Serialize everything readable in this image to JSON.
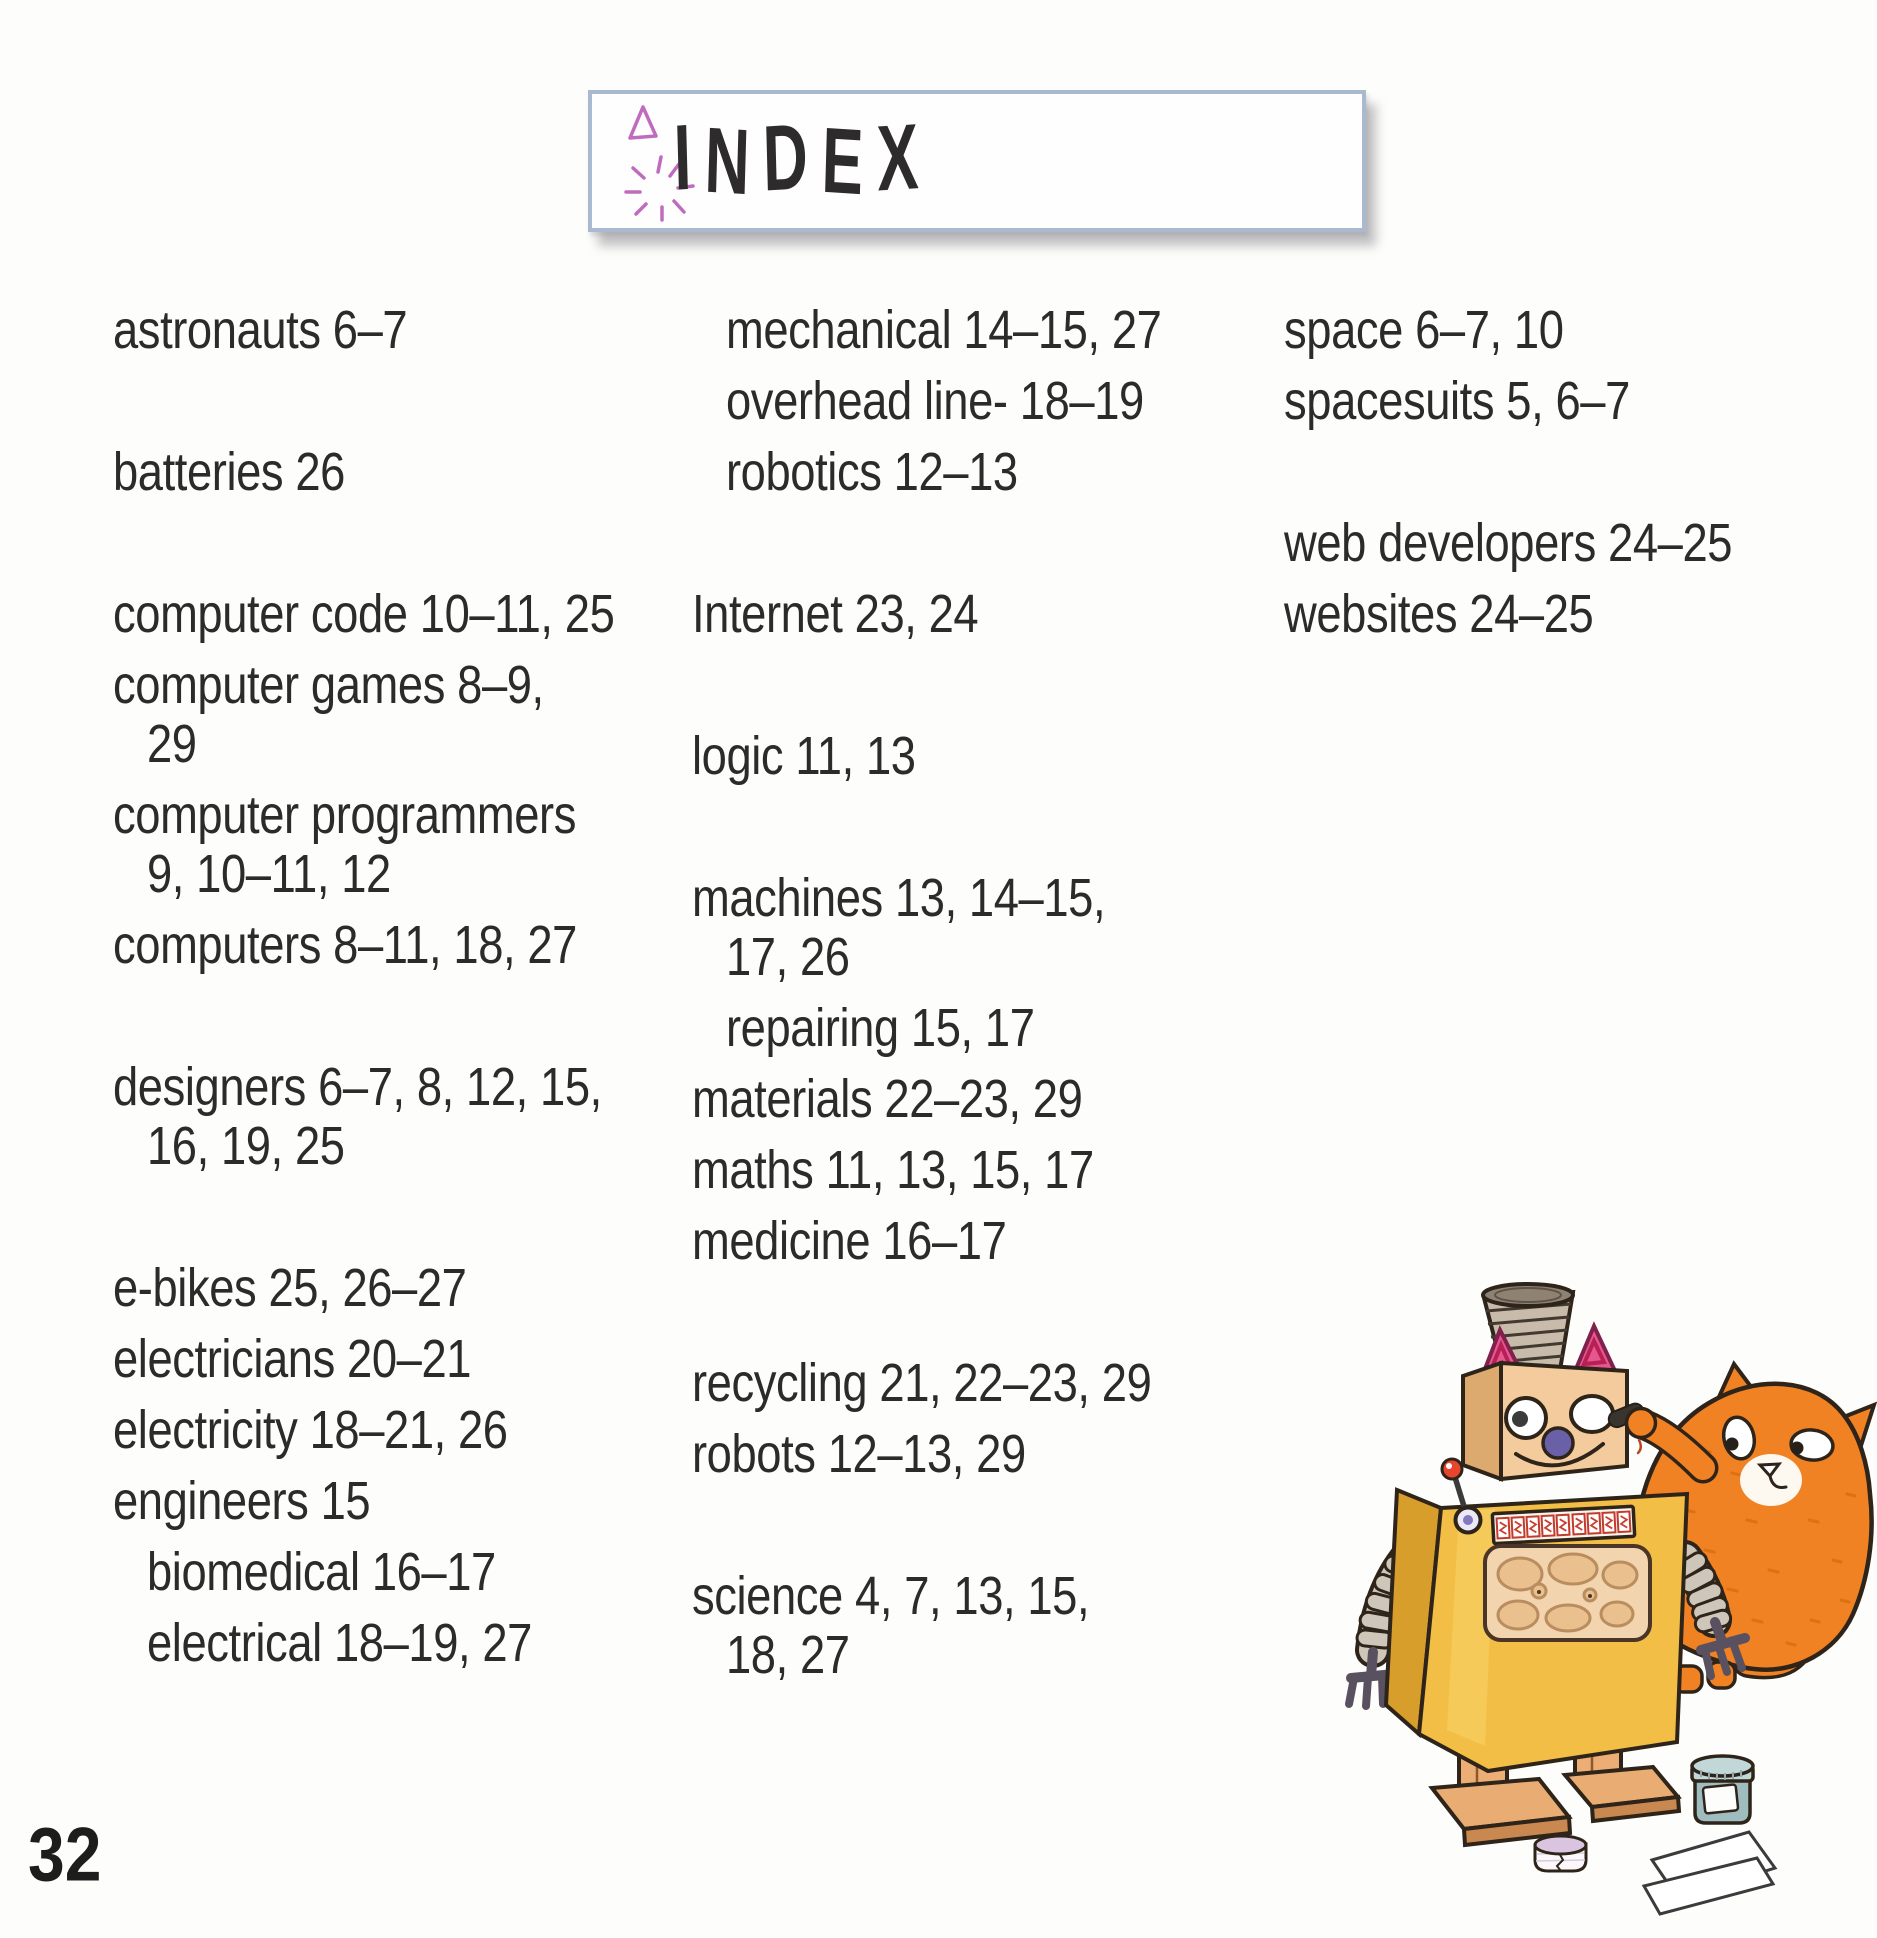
{
  "page": {
    "title": "INDEX",
    "page_number": "32"
  },
  "banner": {
    "border_color": "#A9B9CF",
    "doodle_color": "#C06CBE",
    "decorations": [
      "triangle-doodle",
      "starburst-doodle"
    ]
  },
  "index": {
    "text_color": "#2B2B2B",
    "columns": [
      [
        {
          "t": "astronauts 6–7"
        },
        {
          "t": "batteries 26",
          "sp": 1
        },
        {
          "t": "computer code 10–11, 25",
          "sp": 1
        },
        {
          "t": "computer games 8–9,"
        },
        {
          "t": "29",
          "ind": 1,
          "wrap": true
        },
        {
          "t": "computer programmers"
        },
        {
          "t": "9, 10–11, 12",
          "ind": 1,
          "wrap": true
        },
        {
          "t": "computers 8–11, 18, 27"
        },
        {
          "t": "designers 6–7, 8, 12, 15,",
          "sp": 1
        },
        {
          "t": "16, 19, 25",
          "ind": 1,
          "wrap": true
        },
        {
          "t": "e-bikes 25, 26–27",
          "sp": 1
        },
        {
          "t": "electricians 20–21"
        },
        {
          "t": "electricity 18–21, 26"
        },
        {
          "t": "engineers 15"
        },
        {
          "t": "biomedical 16–17",
          "ind": 1
        },
        {
          "t": "electrical 18–19, 27",
          "ind": 1
        }
      ],
      [
        {
          "t": "mechanical 14–15, 27",
          "ind": 1
        },
        {
          "t": "overhead line- 18–19",
          "ind": 1
        },
        {
          "t": "robotics 12–13",
          "ind": 1
        },
        {
          "t": "Internet 23, 24",
          "sp": 1
        },
        {
          "t": "logic 11, 13",
          "sp": 1
        },
        {
          "t": "machines 13, 14–15,",
          "sp": 1
        },
        {
          "t": "17, 26",
          "ind": 1,
          "wrap": true
        },
        {
          "t": "repairing 15, 17",
          "ind": 1
        },
        {
          "t": "materials 22–23, 29"
        },
        {
          "t": "maths 11, 13, 15, 17"
        },
        {
          "t": "medicine 16–17"
        },
        {
          "t": "recycling 21, 22–23, 29",
          "sp": 1
        },
        {
          "t": "robots 12–13, 29"
        },
        {
          "t": "science 4, 7, 13, 15,",
          "sp": 1
        },
        {
          "t": "18, 27",
          "ind": 1,
          "wrap": true
        }
      ],
      [
        {
          "t": "space 6–7, 10"
        },
        {
          "t": "spacesuits 5, 6–7"
        },
        {
          "t": "web developers 24–25",
          "sp": 1
        },
        {
          "t": "websites 24–25"
        }
      ]
    ]
  },
  "illustration": {
    "name": "cardboard-robot-costume-and-cat",
    "parts": [
      "corrugated-cup-hat",
      "pink-ears",
      "box-head",
      "googly-eyes",
      "purple-nose",
      "toggle-switch",
      "button-strip",
      "egg-carton-panel",
      "spring-arms",
      "fork-hands",
      "cardboard-feet",
      "orange-cat",
      "black-marker",
      "paint-jar",
      "tape-roll",
      "paper-sheets"
    ],
    "colors": {
      "robot_body": "#F3BE45",
      "robot_body_shade": "#D89E2C",
      "robot_head": "#F4CB9C",
      "robot_head_shade": "#DCA96F",
      "ear_pink": "#E7578D",
      "ear_inner": "#B62055",
      "nose_purple": "#6A60A8",
      "hat": "#C9BBA9",
      "hat_top": "#8F8273",
      "spring": "#CFC6BA",
      "fork": "#5A5160",
      "cat": "#F08224",
      "cat_stripe": "#D97010",
      "jar": "#9FBCBF",
      "jar_lid": "#C2D8D8",
      "tape": "#D9C5DF",
      "skin": "#ECAE74",
      "outline": "#2E2419"
    }
  }
}
